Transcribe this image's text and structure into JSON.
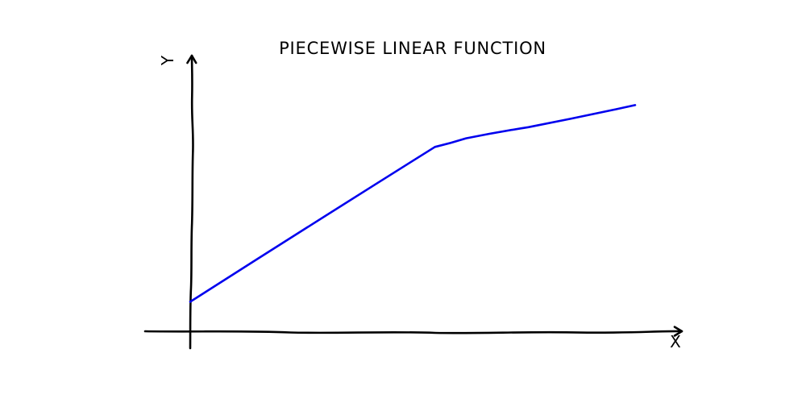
{
  "chart_data": {
    "type": "line",
    "title": "Piecewise linear function",
    "xlabel": "x",
    "ylabel": "y",
    "grid": false,
    "legend": "none",
    "ticks": "none",
    "xlim": [
      0,
      10
    ],
    "ylim": [
      0,
      10
    ],
    "series": [
      {
        "color": "#0000ee",
        "x": [
          0,
          5.5,
          6.2,
          7.6,
          10
        ],
        "y": [
          1.2,
          7.5,
          7.85,
          8.3,
          9.2
        ]
      }
    ]
  }
}
